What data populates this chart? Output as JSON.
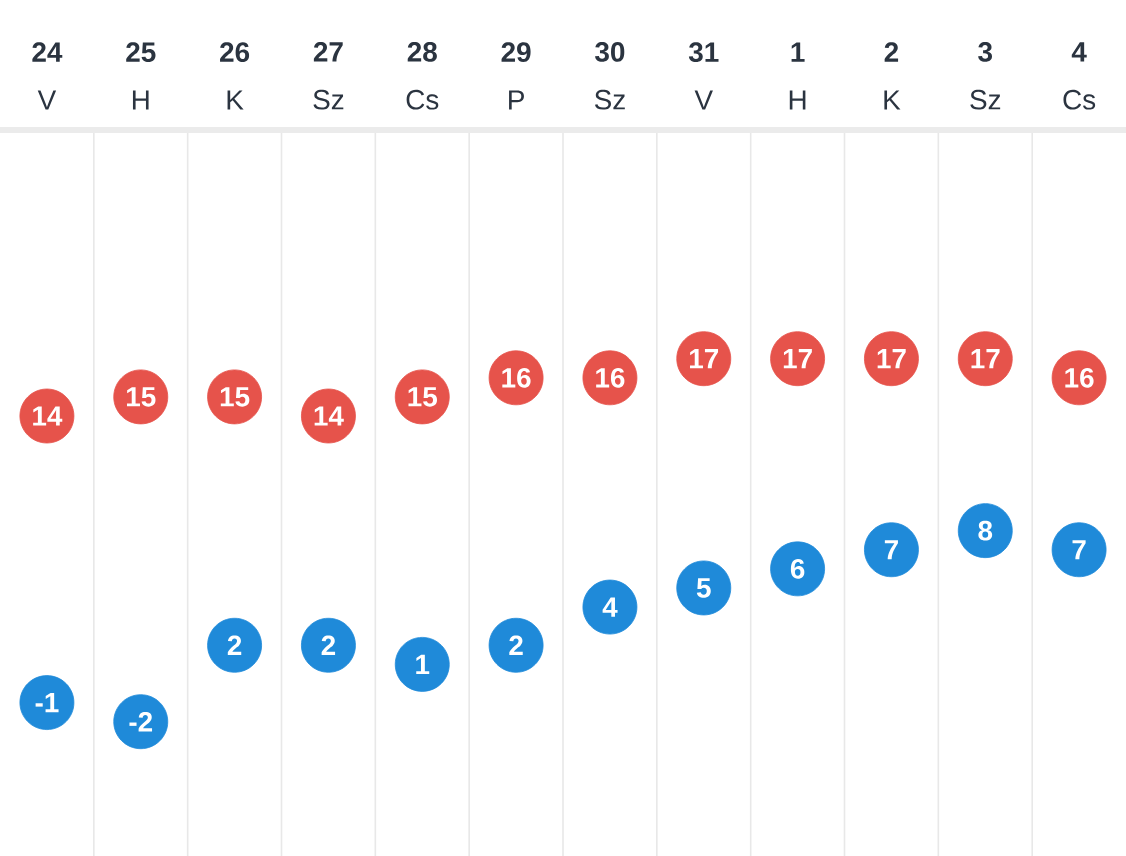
{
  "chart_data": {
    "type": "scatter",
    "categories": [
      "**24** V",
      "**25** H",
      "**26** K",
      "**27** Sz",
      "**28** Cs",
      "**29** P",
      "**30** Sz",
      "**31** V",
      "**1** H",
      "**2** K",
      "**3** Sz",
      "**4** Cs"
    ],
    "series": [
      {
        "color": "#e6534b",
        "values": [
          14,
          15,
          15,
          14,
          15,
          16,
          16,
          17,
          17,
          17,
          17,
          16
        ]
      },
      {
        "color": "#1f8ad9",
        "values": [
          -1,
          -2,
          2,
          2,
          1,
          2,
          4,
          5,
          6,
          7,
          8,
          7
        ]
      }
    ],
    "marker": "circle",
    "data_labels": true,
    "grid": "x"
  }
}
